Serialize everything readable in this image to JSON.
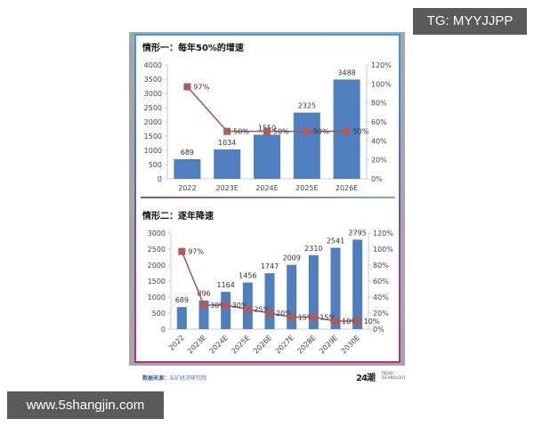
{
  "watermarks": {
    "top_right": "TG: MYYJJPP",
    "bottom_left": "www.5shangjin.com"
  },
  "footer": {
    "source_label": "数据来源：",
    "source_value": "五矿经济研究院",
    "logo_text": "24潮",
    "logo_sub_1": "TREND",
    "logo_sub_2": "TECHNOLOGY"
  },
  "colors": {
    "bar": "#4f7fbf",
    "line": "#a05454",
    "marker": "#b05a5a",
    "axis": "#cccccc"
  },
  "chart_data": [
    {
      "type": "bar+line",
      "title": "情形一：每年50%的增速",
      "categories": [
        "2022",
        "2023E",
        "2024E",
        "2025E",
        "2026E"
      ],
      "series": [
        {
          "name": "bars",
          "axis": "left",
          "values": [
            689,
            1034,
            1550,
            2325,
            3488
          ]
        },
        {
          "name": "growth",
          "axis": "right",
          "values": [
            97,
            50,
            50,
            50,
            50
          ],
          "labels": [
            "97%",
            "50%",
            "50%",
            "50%",
            "50%"
          ]
        }
      ],
      "left_ticks": [
        "0",
        "500",
        "1000",
        "1500",
        "2000",
        "2500",
        "3000",
        "3500",
        "4000"
      ],
      "right_ticks": [
        "0%",
        "20%",
        "40%",
        "60%",
        "80%",
        "100%",
        "120%"
      ],
      "ylim_left": [
        0,
        4000
      ],
      "ylim_right": [
        0,
        120
      ],
      "grid": false
    },
    {
      "type": "bar+line",
      "title": "情形二：逐年降速",
      "categories": [
        "2022",
        "2023E",
        "2024E",
        "2025E",
        "2026E",
        "2027E",
        "2028E",
        "2029E",
        "2030E"
      ],
      "series": [
        {
          "name": "bars",
          "axis": "left",
          "values": [
            689,
            896,
            1164,
            1456,
            1747,
            2009,
            2310,
            2541,
            2795
          ]
        },
        {
          "name": "growth",
          "axis": "right",
          "values": [
            97,
            30,
            30,
            25,
            20,
            15,
            15,
            10,
            10
          ],
          "labels": [
            "97%",
            "30%",
            "30%",
            "25%",
            "20%",
            "15%",
            "15%",
            "10%",
            "10%"
          ]
        }
      ],
      "left_ticks": [
        "0",
        "500",
        "1000",
        "1500",
        "2000",
        "2500",
        "3000"
      ],
      "right_ticks": [
        "0%",
        "20%",
        "40%",
        "60%",
        "80%",
        "100%",
        "120%"
      ],
      "ylim_left": [
        0,
        3000
      ],
      "ylim_right": [
        0,
        120
      ],
      "grid": false
    }
  ]
}
